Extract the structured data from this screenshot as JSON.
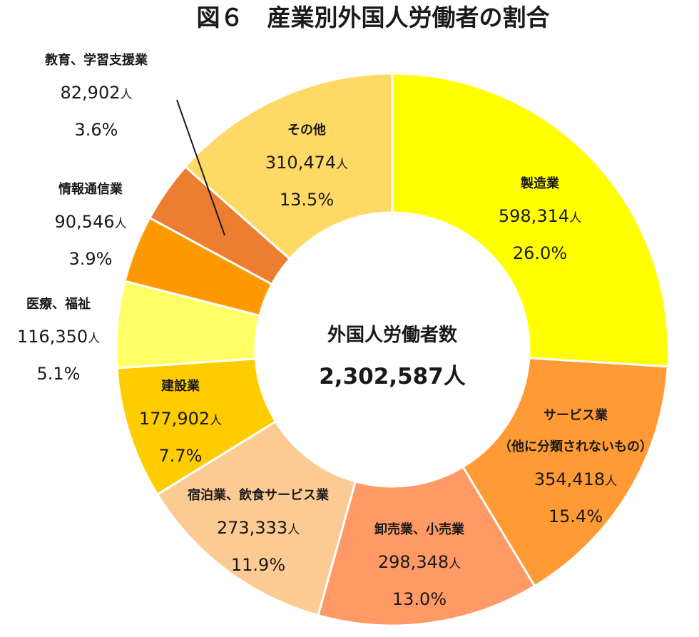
{
  "chart_data": {
    "type": "pie",
    "variant": "donut",
    "title": "図６　産業別外国人労働者の割合",
    "center_label": "外国人労働者数",
    "total": "2,302,587人",
    "unit": "人",
    "slices": [
      {
        "name": "製造業",
        "value": 598314,
        "value_text": "598,314",
        "percent": "26.0%",
        "color": "#FFFF00"
      },
      {
        "name": "サービス業\n（他に分類されないもの）",
        "value": 354418,
        "value_text": "354,418",
        "percent": "15.4%",
        "color": "#FF9A35"
      },
      {
        "name": "卸売業、小売業",
        "value": 298348,
        "value_text": "298,348",
        "percent": "13.0%",
        "color": "#FF9966"
      },
      {
        "name": "宿泊業、飲食サービス業",
        "value": 273333,
        "value_text": "273,333",
        "percent": "11.9%",
        "color": "#FCCB93"
      },
      {
        "name": "建設業",
        "value": 177902,
        "value_text": "177,902",
        "percent": "7.7%",
        "color": "#FFCC00"
      },
      {
        "name": "医療、福祉",
        "value": 116350,
        "value_text": "116,350",
        "percent": "5.1%",
        "color": "#FFFF66"
      },
      {
        "name": "情報通信業",
        "value": 90546,
        "value_text": "90,546",
        "percent": "3.9%",
        "color": "#FF9900"
      },
      {
        "name": "教育、学習支援業",
        "value": 82902,
        "value_text": "82,902",
        "percent": "3.6%",
        "color": "#ED7D31"
      },
      {
        "name": "その他",
        "value": 310474,
        "value_text": "310,474",
        "percent": "13.5%",
        "color": "#FFD966"
      }
    ]
  }
}
